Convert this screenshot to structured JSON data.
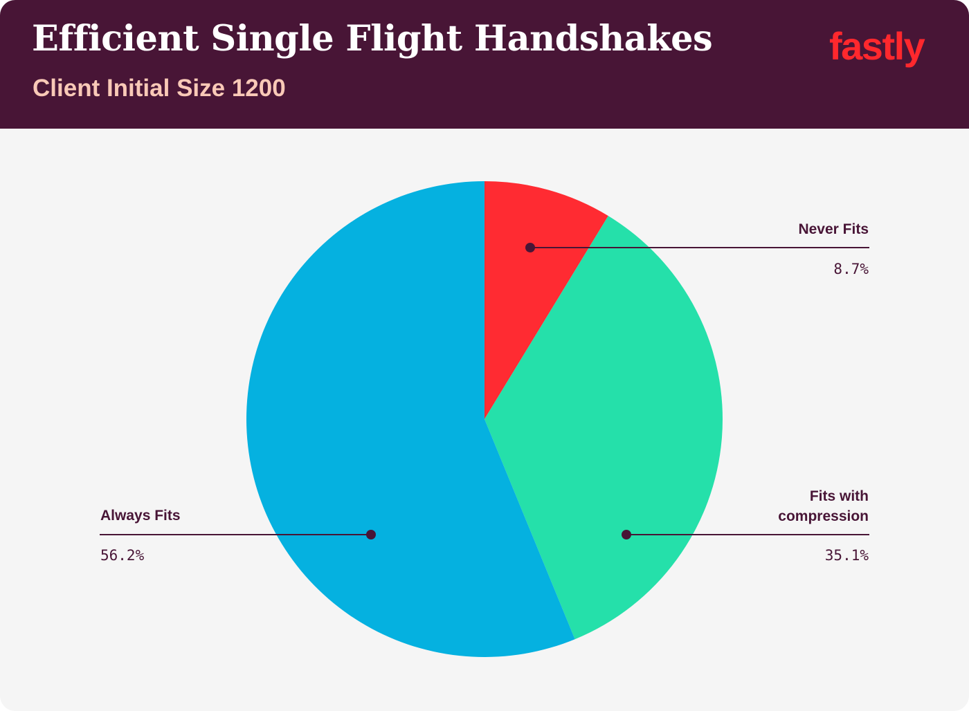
{
  "header": {
    "title": "Efficient Single Flight Handshakes",
    "subtitle": "Client Initial Size 1200",
    "logo_text": "fastly"
  },
  "colors": {
    "header_bg": "#481536",
    "background": "#f5f5f5",
    "subtitle": "#f9c9b7",
    "logo": "#ff282d",
    "label_text": "#481536"
  },
  "chart_data": {
    "type": "pie",
    "title": "Efficient Single Flight Handshakes",
    "subtitle": "Client Initial Size 1200",
    "start_angle": "12 o'clock, clockwise",
    "slices": [
      {
        "label": "Never Fits",
        "value": 8.7,
        "display": "8.7%",
        "color": "#ff2b32"
      },
      {
        "label": "Fits with compression",
        "label_lines": [
          "Fits with",
          "compression"
        ],
        "value": 35.1,
        "display": "35.1%",
        "color": "#25e0aa"
      },
      {
        "label": "Always Fits",
        "value": 56.2,
        "display": "56.2%",
        "color": "#05b1e0"
      }
    ]
  }
}
